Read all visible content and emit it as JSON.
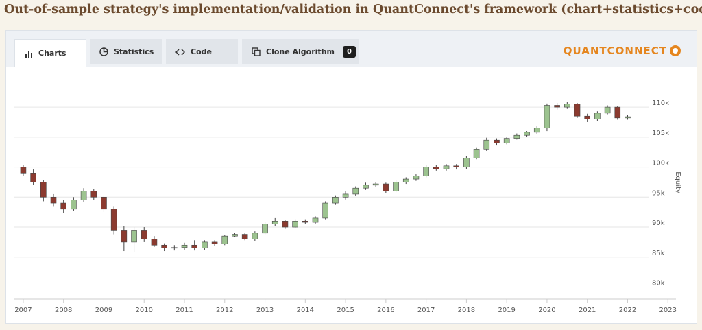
{
  "header": {
    "title": "Out-of-sample strategy's implementation/validation in QuantConnect's framework (chart+statistics+code)"
  },
  "tabs": [
    "Charts",
    "Statistics",
    "Code",
    "Clone Algorithm"
  ],
  "badge": "0",
  "logo": "QUANTCONNECT",
  "chart_data": {
    "type": "candlestick",
    "y_label": "Equity",
    "x": [
      2007,
      2007.25,
      2007.5,
      2007.75,
      2008,
      2008.25,
      2008.5,
      2008.75,
      2009,
      2009.25,
      2009.5,
      2009.75,
      2010,
      2010.25,
      2010.5,
      2010.75,
      2011,
      2011.25,
      2011.5,
      2011.75,
      2012,
      2012.25,
      2012.5,
      2012.75,
      2013,
      2013.25,
      2013.5,
      2013.75,
      2014,
      2014.25,
      2014.5,
      2014.75,
      2015,
      2015.25,
      2015.5,
      2015.75,
      2016,
      2016.25,
      2016.5,
      2016.75,
      2017,
      2017.25,
      2017.5,
      2017.75,
      2018,
      2018.25,
      2018.5,
      2018.75,
      2019,
      2019.25,
      2019.5,
      2019.75,
      2020,
      2020.25,
      2020.5,
      2020.75,
      2021,
      2021.25,
      2021.5,
      2021.75,
      2022
    ],
    "open": [
      100000,
      99000,
      97500,
      95000,
      94000,
      93000,
      94500,
      96000,
      95000,
      93000,
      89500,
      87500,
      89500,
      88000,
      87000,
      86500,
      86600,
      87000,
      86500,
      87500,
      87200,
      88500,
      88800,
      88000,
      89000,
      90500,
      91000,
      90000,
      91000,
      90800,
      91500,
      94000,
      95000,
      95500,
      96500,
      97000,
      97200,
      96000,
      97500,
      98000,
      98500,
      100000,
      99700,
      100200,
      100000,
      101500,
      103000,
      104500,
      104000,
      104800,
      105300,
      105800,
      106500,
      110300,
      110000,
      110500,
      108500,
      108000,
      109000,
      110000,
      108200
    ],
    "high": [
      100300,
      99600,
      97800,
      95500,
      94500,
      95000,
      96500,
      96300,
      95300,
      93500,
      90200,
      90000,
      90000,
      88500,
      87300,
      87000,
      87400,
      87800,
      87800,
      87800,
      88700,
      89000,
      89000,
      89300,
      90800,
      91500,
      91200,
      91300,
      91300,
      91800,
      94300,
      95300,
      96000,
      96800,
      97400,
      97500,
      97400,
      97800,
      98300,
      98800,
      100300,
      100400,
      100500,
      100500,
      101800,
      103300,
      104900,
      104800,
      105000,
      105600,
      106000,
      106800,
      110600,
      110700,
      110900,
      110700,
      108900,
      109300,
      110300,
      110200,
      108700
    ],
    "low": [
      98500,
      97000,
      94300,
      93500,
      92300,
      92700,
      94200,
      94500,
      92500,
      88800,
      86000,
      85800,
      87500,
      86700,
      86000,
      86100,
      86200,
      86100,
      86200,
      86900,
      87000,
      88300,
      87800,
      87700,
      88800,
      90200,
      89700,
      89800,
      90500,
      90500,
      91300,
      93700,
      94600,
      95200,
      96200,
      96700,
      95700,
      95800,
      97200,
      97700,
      98300,
      99400,
      99400,
      99600,
      99700,
      101300,
      102700,
      103600,
      103800,
      104600,
      105100,
      105500,
      106000,
      109600,
      109700,
      108200,
      107500,
      107700,
      108800,
      107900,
      107900
    ],
    "close": [
      99000,
      97500,
      95000,
      94000,
      93000,
      94500,
      96000,
      95000,
      93000,
      89500,
      87500,
      89500,
      88000,
      87000,
      86500,
      86600,
      87000,
      86500,
      87500,
      87200,
      88500,
      88800,
      88000,
      89000,
      90500,
      91000,
      90000,
      91000,
      90800,
      91500,
      94000,
      95000,
      95500,
      96500,
      97000,
      97200,
      96000,
      97500,
      98000,
      98500,
      100000,
      99700,
      100200,
      100000,
      101500,
      103000,
      104500,
      104000,
      104800,
      105300,
      105800,
      106500,
      110300,
      110000,
      110500,
      108500,
      108000,
      109000,
      110000,
      108200,
      108400
    ],
    "up_color": "#9cc38f",
    "down_color": "#8b3a2f",
    "xlim": [
      2006.78,
      2023.2
    ],
    "xticks": [
      2007,
      2008,
      2009,
      2010,
      2011,
      2012,
      2013,
      2014,
      2015,
      2016,
      2017,
      2018,
      2019,
      2020,
      2021,
      2022,
      2023
    ],
    "ylim": [
      78000,
      116300
    ],
    "yticks": [
      {
        "value": 80000,
        "label": "80k"
      },
      {
        "value": 85000,
        "label": "85k"
      },
      {
        "value": 90000,
        "label": "90k"
      },
      {
        "value": 95000,
        "label": "95k"
      },
      {
        "value": 100000,
        "label": "100k"
      },
      {
        "value": 105000,
        "label": "105k"
      },
      {
        "value": 110000,
        "label": "110k"
      }
    ],
    "grid": true
  }
}
